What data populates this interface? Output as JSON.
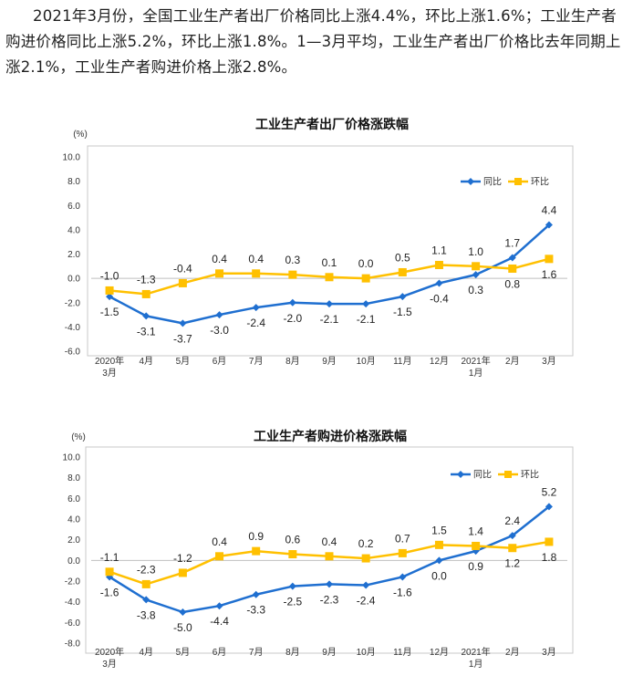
{
  "intro_text": "2021年3月份，全国工业生产者出厂价格同比上涨4.4%，环比上涨1.6%；工业生产者购进价格同比上涨5.2%，环比上涨1.8%。1—3月平均，工业生产者出厂价格比去年同期上涨2.1%，工业生产者购进价格上涨2.8%。",
  "colors": {
    "yoy": "#1f6fd0",
    "mom": "#ffc000",
    "axis": "#bfbfbf",
    "frame": "#c8c8c8"
  },
  "chart_data": [
    {
      "type": "line",
      "title": "工业生产者出厂价格涨跌幅",
      "unit": "(%)",
      "ylim": [
        -6,
        10
      ],
      "yticks": [
        "10.0",
        "8.0",
        "6.0",
        "4.0",
        "2.0",
        "0.0",
        "-2.0",
        "-4.0",
        "-6.0"
      ],
      "categories": [
        [
          "2020年",
          "3月"
        ],
        [
          "4月"
        ],
        [
          "5月"
        ],
        [
          "6月"
        ],
        [
          "7月"
        ],
        [
          "8月"
        ],
        [
          "9月"
        ],
        [
          "10月"
        ],
        [
          "11月"
        ],
        [
          "12月"
        ],
        [
          "2021年",
          "1月"
        ],
        [
          "2月"
        ],
        [
          "3月"
        ]
      ],
      "series": [
        {
          "name": "同比",
          "values": [
            -1.5,
            -3.1,
            -3.7,
            -3.0,
            -2.4,
            -2.0,
            -2.1,
            -2.1,
            -1.5,
            -0.4,
            0.3,
            1.7,
            4.4
          ],
          "labels": [
            "-1.5",
            "-3.1",
            "-3.7",
            "-3.0",
            "-2.4",
            "-2.0",
            "-2.1",
            "-2.1",
            "-1.5",
            "-0.4",
            "0.3",
            "1.7",
            "4.4"
          ]
        },
        {
          "name": "环比",
          "values": [
            -1.0,
            -1.3,
            -0.4,
            0.4,
            0.4,
            0.3,
            0.1,
            0.0,
            0.5,
            1.1,
            1.0,
            0.8,
            1.6
          ],
          "labels": [
            "-1.0",
            "-1.3",
            "-0.4",
            "0.4",
            "0.4",
            "0.3",
            "0.1",
            "0.0",
            "0.5",
            "1.1",
            "1.0",
            "0.8",
            "1.6"
          ]
        }
      ],
      "grid": false,
      "legend_position": "top-right"
    },
    {
      "type": "line",
      "title": "工业生产者购进价格涨跌幅",
      "unit": "(%)",
      "ylim": [
        -8,
        10
      ],
      "yticks": [
        "10.0",
        "8.0",
        "6.0",
        "4.0",
        "2.0",
        "0.0",
        "-2.0",
        "-4.0",
        "-6.0",
        "-8.0"
      ],
      "categories": [
        [
          "2020年",
          "3月"
        ],
        [
          "4月"
        ],
        [
          "5月"
        ],
        [
          "6月"
        ],
        [
          "7月"
        ],
        [
          "8月"
        ],
        [
          "9月"
        ],
        [
          "10月"
        ],
        [
          "11月"
        ],
        [
          "12月"
        ],
        [
          "2021年",
          "1月"
        ],
        [
          "2月"
        ],
        [
          "3月"
        ]
      ],
      "series": [
        {
          "name": "同比",
          "values": [
            -1.6,
            -3.8,
            -5.0,
            -4.4,
            -3.3,
            -2.5,
            -2.3,
            -2.4,
            -1.6,
            0.0,
            0.9,
            2.4,
            5.2
          ],
          "labels": [
            "-1.6",
            "-3.8",
            "-5.0",
            "-4.4",
            "-3.3",
            "-2.5",
            "-2.3",
            "-2.4",
            "-1.6",
            "0.0",
            "0.9",
            "2.4",
            "5.2"
          ]
        },
        {
          "name": "环比",
          "values": [
            -1.1,
            -2.3,
            -1.2,
            0.4,
            0.9,
            0.6,
            0.4,
            0.2,
            0.7,
            1.5,
            1.4,
            1.2,
            1.8
          ],
          "labels": [
            "-1.1",
            "-2.3",
            "-1.2",
            "0.4",
            "0.9",
            "0.6",
            "0.4",
            "0.2",
            "0.7",
            "1.5",
            "1.4",
            "1.2",
            "1.8"
          ]
        }
      ],
      "grid": false,
      "legend_position": "top-right"
    }
  ]
}
